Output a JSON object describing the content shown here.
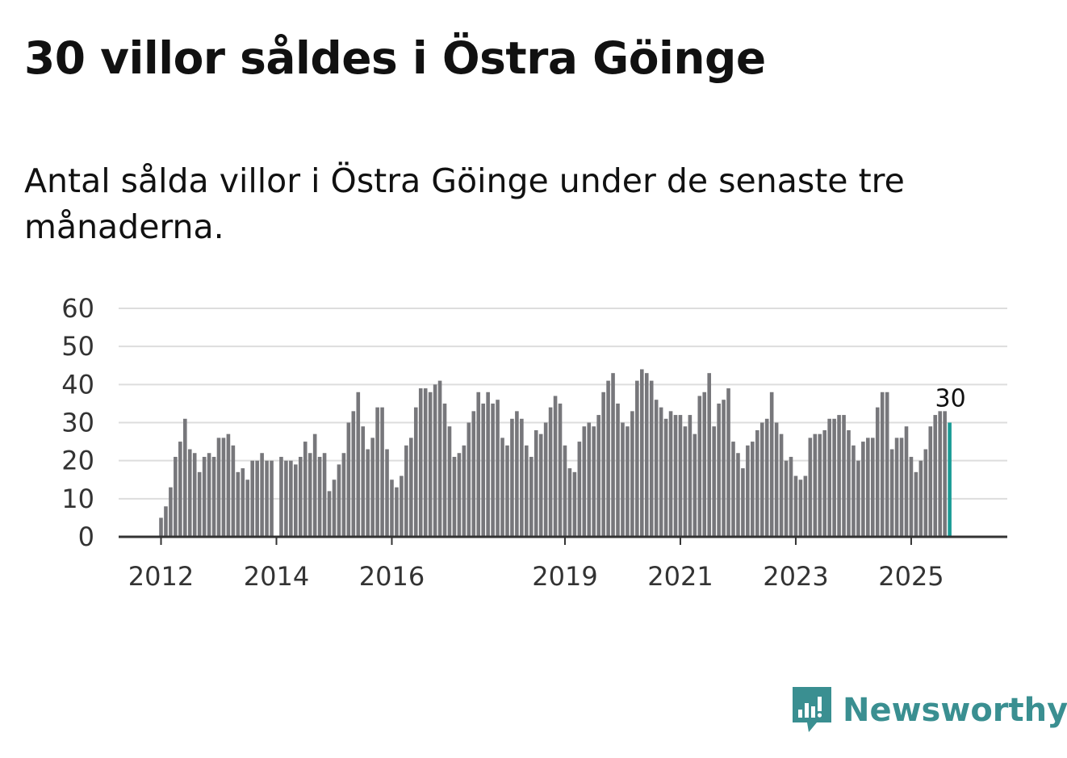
{
  "title": "30 villor såldes i Östra Göinge",
  "subtitle": "Antal sålda villor i Östra Göinge under de senaste tre månaderna.",
  "brand": {
    "name": "Newsworthy"
  },
  "colors": {
    "bar": "#77777b",
    "highlight": "#1a9c96",
    "grid": "#dddddd",
    "axis": "#333333",
    "brand": "#3a8f91"
  },
  "chart_data": {
    "type": "bar",
    "title": "30 villor såldes i Östra Göinge",
    "ylim": [
      0,
      60
    ],
    "yticks": [
      0,
      10,
      20,
      30,
      40,
      50,
      60
    ],
    "xticks": [
      {
        "label": "2012",
        "index": 0
      },
      {
        "label": "2014",
        "index": 24
      },
      {
        "label": "2016",
        "index": 48
      },
      {
        "label": "2019",
        "index": 84
      },
      {
        "label": "2021",
        "index": 108
      },
      {
        "label": "2023",
        "index": 132
      },
      {
        "label": "2025",
        "index": 156
      }
    ],
    "values": [
      5,
      8,
      13,
      21,
      25,
      31,
      23,
      22,
      17,
      21,
      22,
      21,
      26,
      26,
      27,
      24,
      17,
      18,
      15,
      20,
      20,
      22,
      20,
      20,
      0,
      21,
      20,
      20,
      19,
      21,
      25,
      22,
      27,
      21,
      22,
      12,
      15,
      19,
      22,
      30,
      33,
      38,
      29,
      23,
      26,
      34,
      34,
      23,
      15,
      13,
      16,
      24,
      26,
      34,
      39,
      39,
      38,
      40,
      41,
      35,
      29,
      21,
      22,
      24,
      30,
      33,
      38,
      35,
      38,
      35,
      36,
      26,
      24,
      31,
      33,
      31,
      24,
      21,
      28,
      27,
      30,
      34,
      37,
      35,
      24,
      18,
      17,
      25,
      29,
      30,
      29,
      32,
      38,
      41,
      43,
      35,
      30,
      29,
      33,
      41,
      44,
      43,
      41,
      36,
      34,
      31,
      33,
      32,
      32,
      29,
      32,
      27,
      37,
      38,
      43,
      29,
      35,
      36,
      39,
      25,
      22,
      18,
      24,
      25,
      28,
      30,
      31,
      38,
      30,
      27,
      20,
      21,
      16,
      15,
      16,
      26,
      27,
      27,
      28,
      31,
      31,
      32,
      32,
      28,
      24,
      20,
      25,
      26,
      26,
      34,
      38,
      38,
      23,
      26,
      26,
      29,
      21,
      17,
      20,
      23,
      29,
      32,
      33,
      33,
      30
    ],
    "highlight_index": 164,
    "highlight_label": "30"
  }
}
